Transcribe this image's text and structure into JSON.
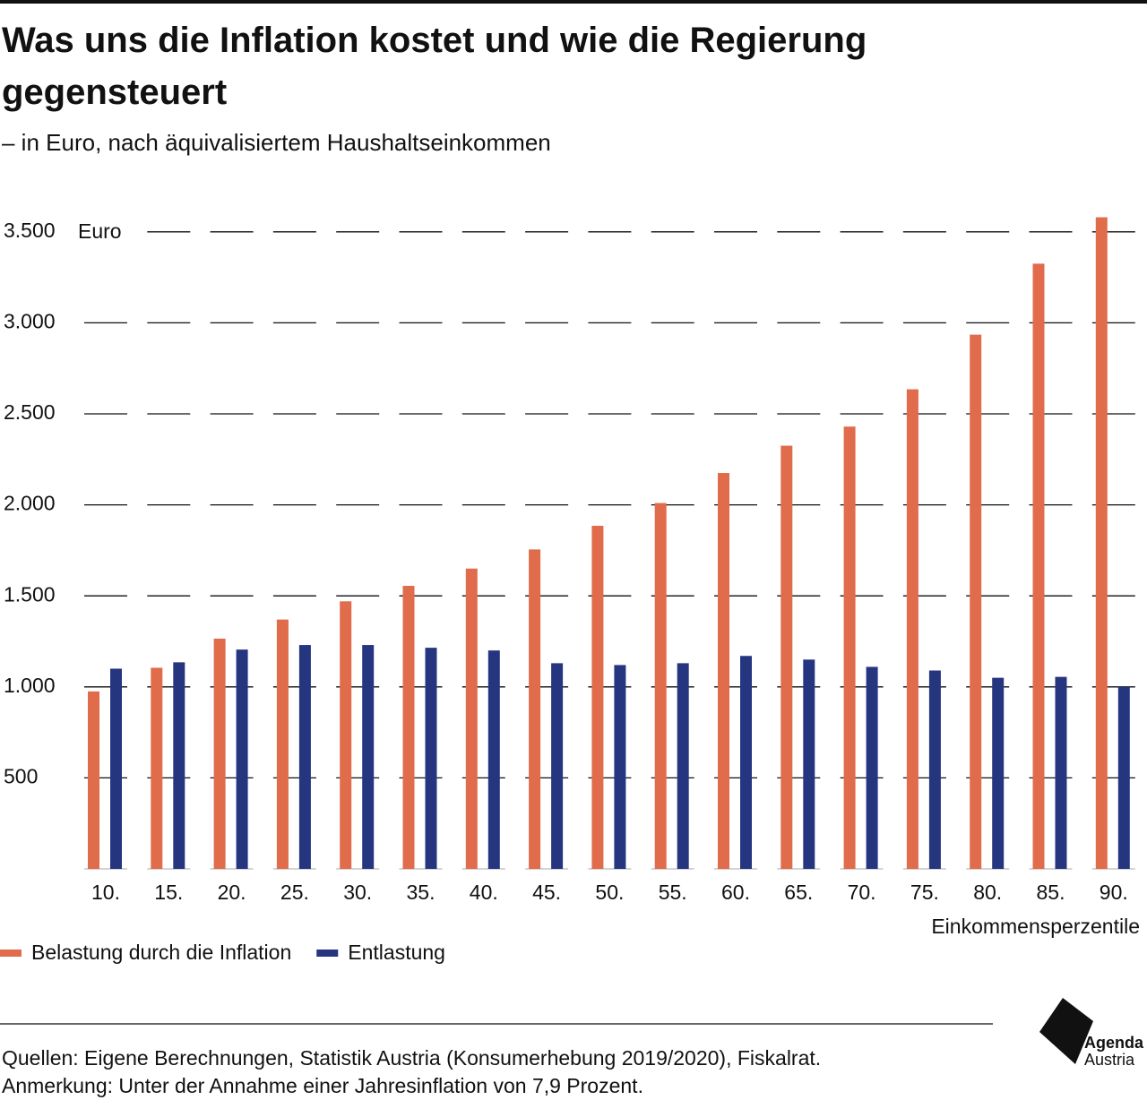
{
  "chart_data": {
    "type": "bar",
    "title": "Was uns die Inflation kostet und wie die Regierung gegensteuert",
    "subtitle": "– in Euro, nach äquivalisiertem Haushaltseinkommen",
    "y_label": "Euro",
    "x_label": "Einkommensperzentile",
    "categories": [
      "10.",
      "15.",
      "20.",
      "25.",
      "30.",
      "35.",
      "40.",
      "45.",
      "50.",
      "55.",
      "60.",
      "65.",
      "70.",
      "75.",
      "80.",
      "85.",
      "90."
    ],
    "series": [
      {
        "name": "Belastung durch die Inflation",
        "color": "#e06c4c",
        "values": [
          975,
          1105,
          1265,
          1370,
          1470,
          1555,
          1650,
          1755,
          1885,
          2010,
          2175,
          2325,
          2430,
          2635,
          2935,
          3325,
          3580
        ]
      },
      {
        "name": "Entlastung",
        "color": "#263580",
        "values": [
          1100,
          1135,
          1205,
          1230,
          1230,
          1215,
          1200,
          1130,
          1120,
          1130,
          1170,
          1150,
          1110,
          1090,
          1050,
          1055,
          1000
        ]
      }
    ],
    "ylim": [
      0,
      3600
    ],
    "yticks": [
      500,
      {
        "value": 1000,
        "label": "1.000"
      },
      {
        "value": 1500,
        "label": "1.500"
      },
      {
        "value": 2000,
        "label": "2.000"
      },
      {
        "value": 2500,
        "label": "2.500"
      },
      {
        "value": 3000,
        "label": "3.000"
      },
      {
        "value": 3500,
        "label": "3.500"
      }
    ],
    "grid": true,
    "legend": "bottom-left"
  },
  "footer": {
    "sources": "Quellen: Eigene Berechnungen, Statistik Austria (Konsumerhebung 2019/2020), Fiskalrat.",
    "note": "Anmerkung: Unter der Annahme einer Jahresinflation von 7,9 Prozent.",
    "logo": [
      "Agenda",
      "Austria"
    ]
  }
}
